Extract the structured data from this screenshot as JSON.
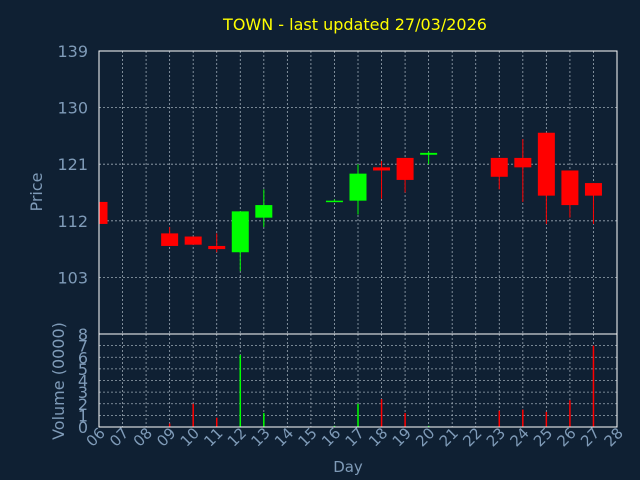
{
  "colors": {
    "background": "#0f2033",
    "frame": "#ffffff",
    "grid": "#9aa7b3",
    "title": "#ffff00",
    "label": "#7f9bb8",
    "up": "#00ff00",
    "down": "#ff0000"
  },
  "chart_data": {
    "type": "candlestick",
    "title": "TOWN - last updated 27/03/2026",
    "xlabel": "Day",
    "price_axis": {
      "label": "Price",
      "ylim": [
        94,
        139
      ],
      "ticks": [
        103,
        112,
        121,
        130,
        139
      ],
      "grid": true
    },
    "volume_axis": {
      "label": "Volume (0000)",
      "ylim": [
        0,
        8
      ],
      "ticks": [
        0,
        1,
        2,
        3,
        4,
        5,
        6,
        7,
        8
      ],
      "grid": true
    },
    "x_ticks": [
      "06",
      "07",
      "08",
      "09",
      "10",
      "11",
      "12",
      "13",
      "14",
      "15",
      "16",
      "17",
      "18",
      "19",
      "20",
      "21",
      "22",
      "23",
      "24",
      "25",
      "26",
      "27",
      "28"
    ],
    "candles": [
      {
        "day": "06",
        "open": 115.0,
        "close": 111.5,
        "high": 115.0,
        "low": 111.5,
        "volume": 0
      },
      {
        "day": "09",
        "open": 110.0,
        "close": 108.0,
        "high": 111.0,
        "low": 108.0,
        "volume": 0.3
      },
      {
        "day": "10",
        "open": 109.5,
        "close": 108.2,
        "high": 109.5,
        "low": 108.2,
        "volume": 2.0
      },
      {
        "day": "11",
        "open": 108.0,
        "close": 107.5,
        "high": 110.0,
        "low": 107.0,
        "volume": 0.8
      },
      {
        "day": "12",
        "open": 107.0,
        "close": 113.5,
        "high": 113.5,
        "low": 104.0,
        "volume": 6.2
      },
      {
        "day": "13",
        "open": 112.5,
        "close": 114.5,
        "high": 117.0,
        "low": 111.0,
        "volume": 1.2
      },
      {
        "day": "16",
        "open": 115.0,
        "close": 115.2,
        "high": 115.4,
        "low": 115.0,
        "volume": 0.1
      },
      {
        "day": "17",
        "open": 115.2,
        "close": 119.5,
        "high": 121.0,
        "low": 113.0,
        "volume": 2.0
      },
      {
        "day": "18",
        "open": 120.5,
        "close": 120.0,
        "high": 121.5,
        "low": 115.5,
        "volume": 2.4
      },
      {
        "day": "19",
        "open": 122.0,
        "close": 118.5,
        "high": 122.0,
        "low": 116.5,
        "volume": 1.2
      },
      {
        "day": "20",
        "open": 122.5,
        "close": 122.8,
        "high": 123.0,
        "low": 121.0,
        "volume": 0.1
      },
      {
        "day": "23",
        "open": 122.0,
        "close": 119.0,
        "high": 122.0,
        "low": 117.0,
        "volume": 1.4
      },
      {
        "day": "24",
        "open": 122.0,
        "close": 120.5,
        "high": 125.0,
        "low": 115.0,
        "volume": 1.5
      },
      {
        "day": "25",
        "open": 126.0,
        "close": 116.0,
        "high": 126.0,
        "low": 111.5,
        "volume": 1.3
      },
      {
        "day": "26",
        "open": 120.0,
        "close": 114.5,
        "high": 120.0,
        "low": 112.5,
        "volume": 2.3
      },
      {
        "day": "27",
        "open": 118.0,
        "close": 116.0,
        "high": 118.0,
        "low": 111.5,
        "volume": 7.0
      }
    ]
  }
}
